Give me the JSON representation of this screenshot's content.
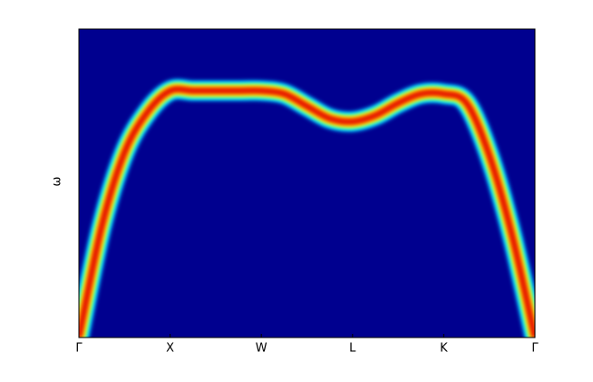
{
  "chart_data": {
    "type": "line",
    "y_label": "ω",
    "x": [
      0,
      0.25,
      0.5,
      0.75,
      1,
      1.25,
      1.5,
      1.75,
      2,
      2.25,
      2.5,
      2.75,
      3,
      3.25,
      3.5,
      3.75,
      4,
      4.25,
      4.5,
      4.75,
      5
    ],
    "series": [
      {
        "color": "#e00000",
        "values": [
          0,
          0.36,
          0.6,
          0.73,
          0.8,
          0.8,
          0.8,
          0.8,
          0.8,
          0.79,
          0.75,
          0.71,
          0.7,
          0.72,
          0.76,
          0.79,
          0.79,
          0.76,
          0.59,
          0.33,
          0
        ]
      }
    ],
    "xlim": [
      0,
      5
    ],
    "xticks": [
      {
        "value": 0,
        "label": "Γ"
      },
      {
        "value": 1,
        "label": "X"
      },
      {
        "value": 2,
        "label": "W"
      },
      {
        "value": 3,
        "label": "L"
      },
      {
        "value": 4,
        "label": "K"
      },
      {
        "value": 5,
        "label": "Γ"
      }
    ],
    "ylim": [
      0,
      1
    ],
    "background": "#00008f"
  }
}
